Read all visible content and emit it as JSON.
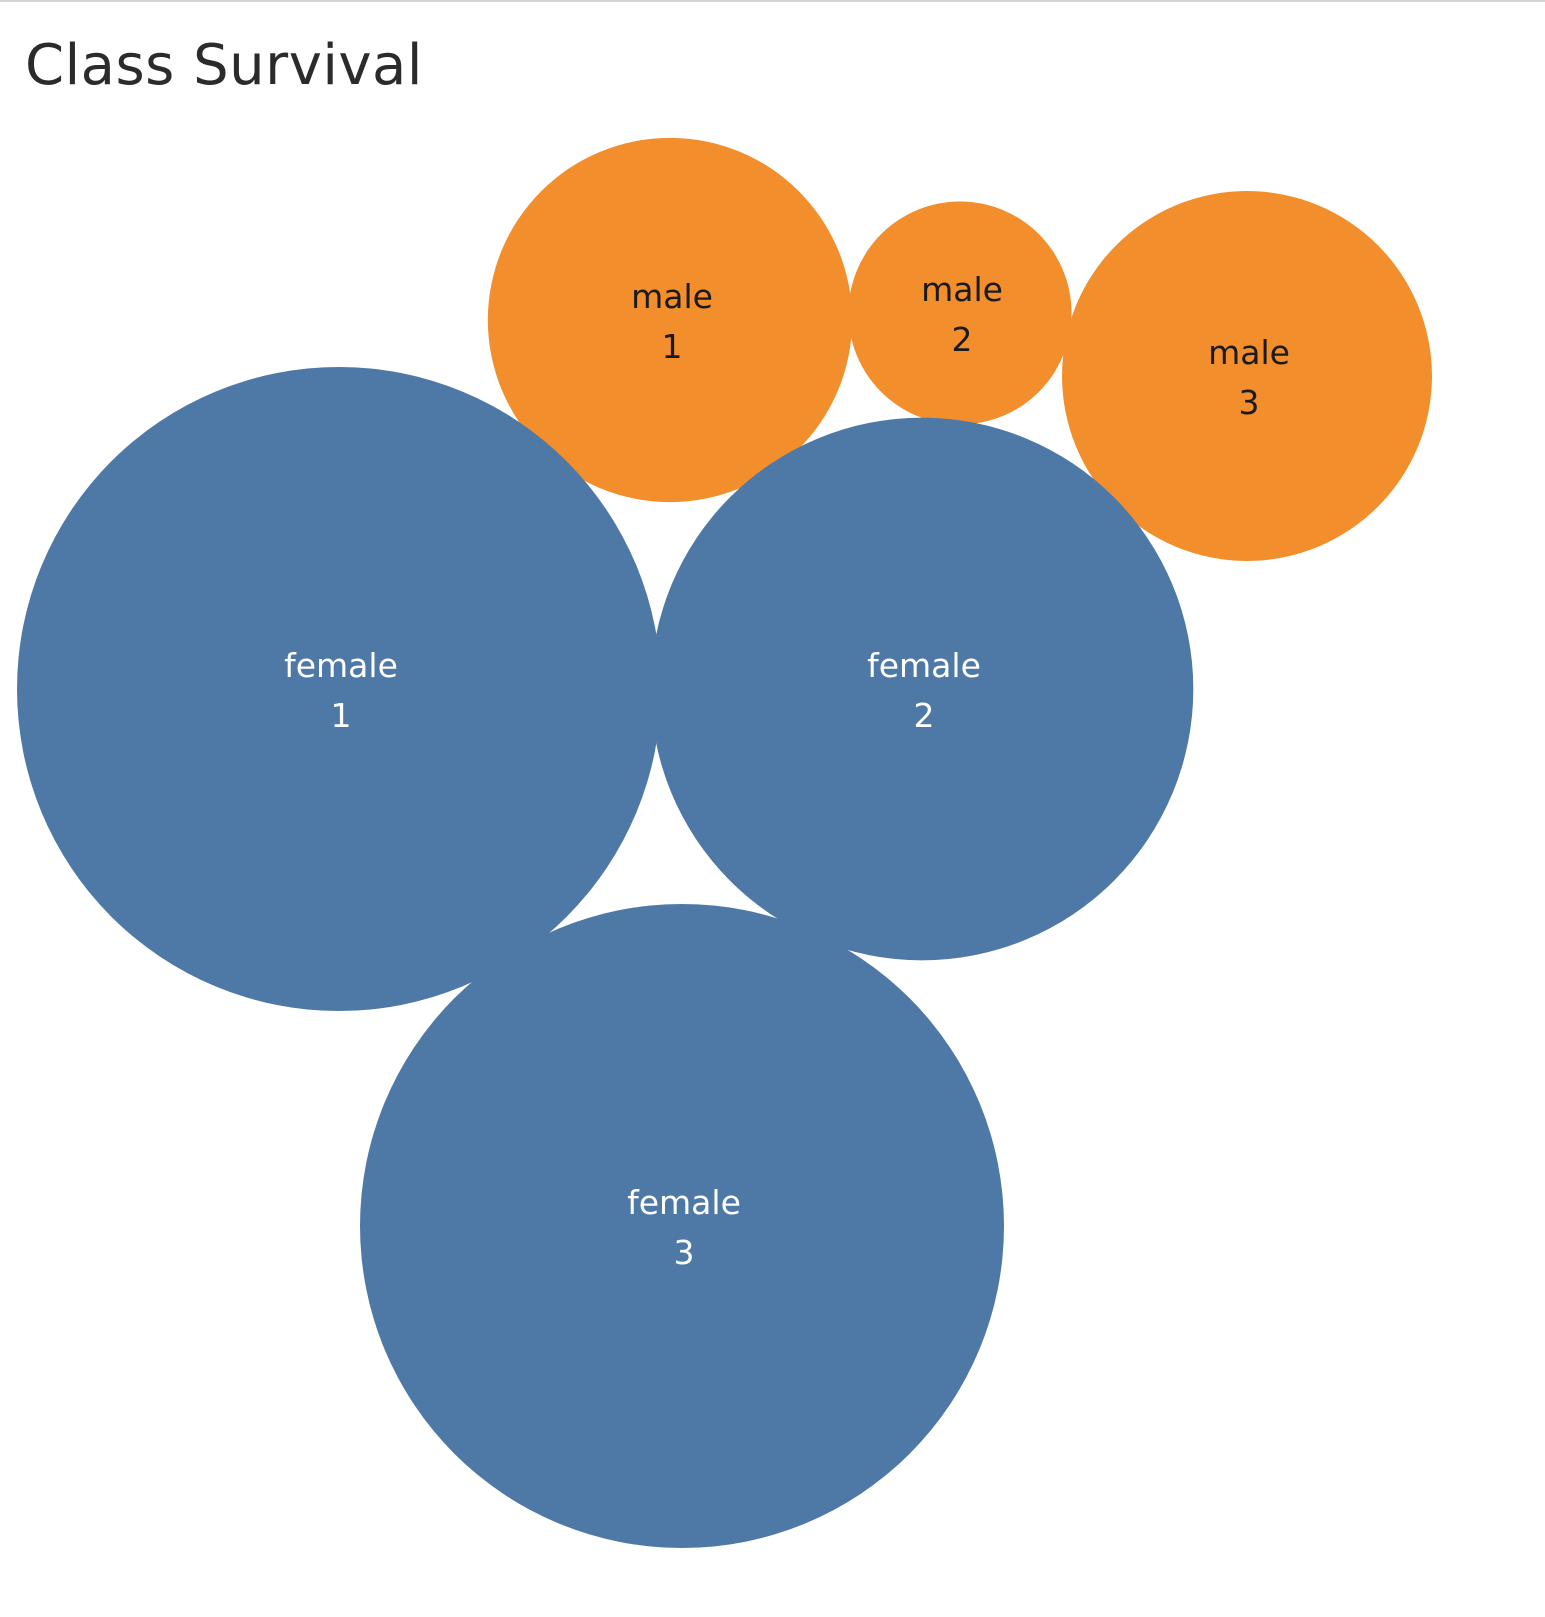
{
  "chart_data": {
    "type": "bubble",
    "title": "Class Survival",
    "colors": {
      "female": "#4e79a7",
      "male": "#f28e2b",
      "label_on_female": "#ffffff",
      "label_on_male": "#1a1a1a"
    },
    "bubbles": [
      {
        "sex": "male",
        "pclass": "1",
        "value": 0.32
      },
      {
        "sex": "male",
        "pclass": "2",
        "value": 0.12
      },
      {
        "sex": "male",
        "pclass": "3",
        "value": 0.33
      },
      {
        "sex": "female",
        "pclass": "1",
        "value": 1.0
      },
      {
        "sex": "female",
        "pclass": "2",
        "value": 0.71
      },
      {
        "sex": "female",
        "pclass": "3",
        "value": 1.0
      }
    ]
  }
}
